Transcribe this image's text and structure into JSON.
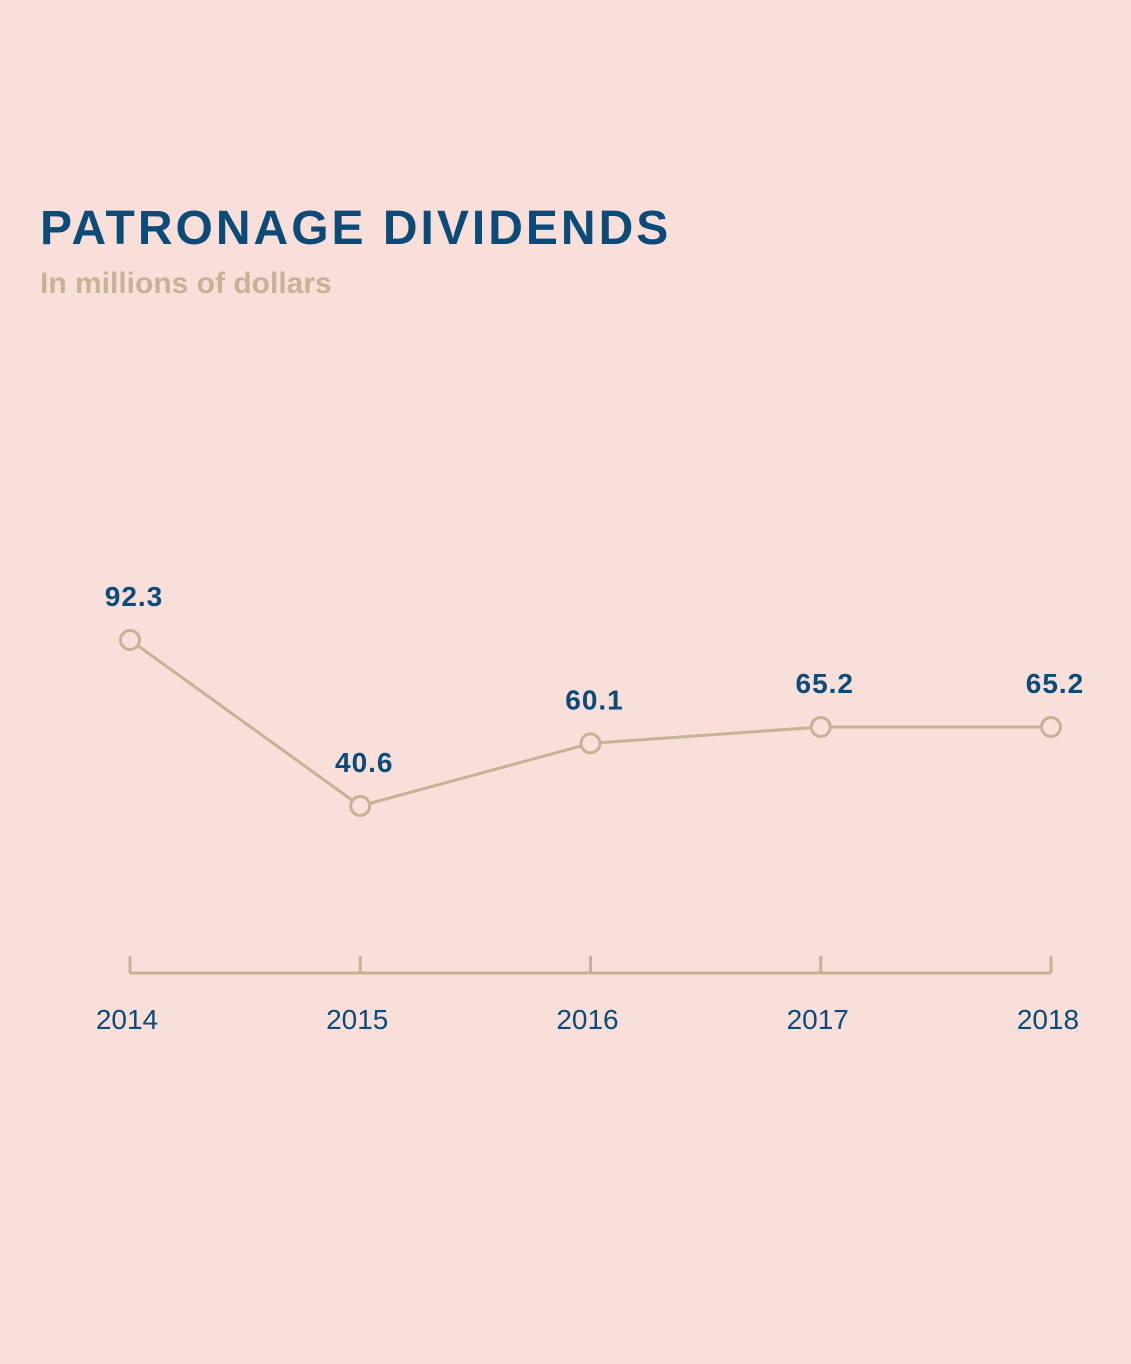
{
  "colors": {
    "background": "#f9dfda",
    "title": "#0c4a78",
    "subtitle": "#c5b395",
    "line": "#c5b395",
    "marker_fill": "#f9dfda",
    "data_label": "#0c4a78",
    "tick_label": "#0c4a78",
    "axis": "#c5b395"
  },
  "chart_data": {
    "type": "line",
    "title": "PATRONAGE DIVIDENDS",
    "subtitle": "In millions of dollars",
    "categories": [
      "2014",
      "2015",
      "2016",
      "2017",
      "2018"
    ],
    "values": [
      92.3,
      40.6,
      60.1,
      65.2,
      65.2
    ],
    "data_labels": [
      "92.3",
      "40.6",
      "60.1",
      "65.2",
      "65.2"
    ],
    "xlabel": "",
    "ylabel": "",
    "y_axis_visible": false,
    "grid": false,
    "legend": "none",
    "markers": "hollow-circle"
  }
}
